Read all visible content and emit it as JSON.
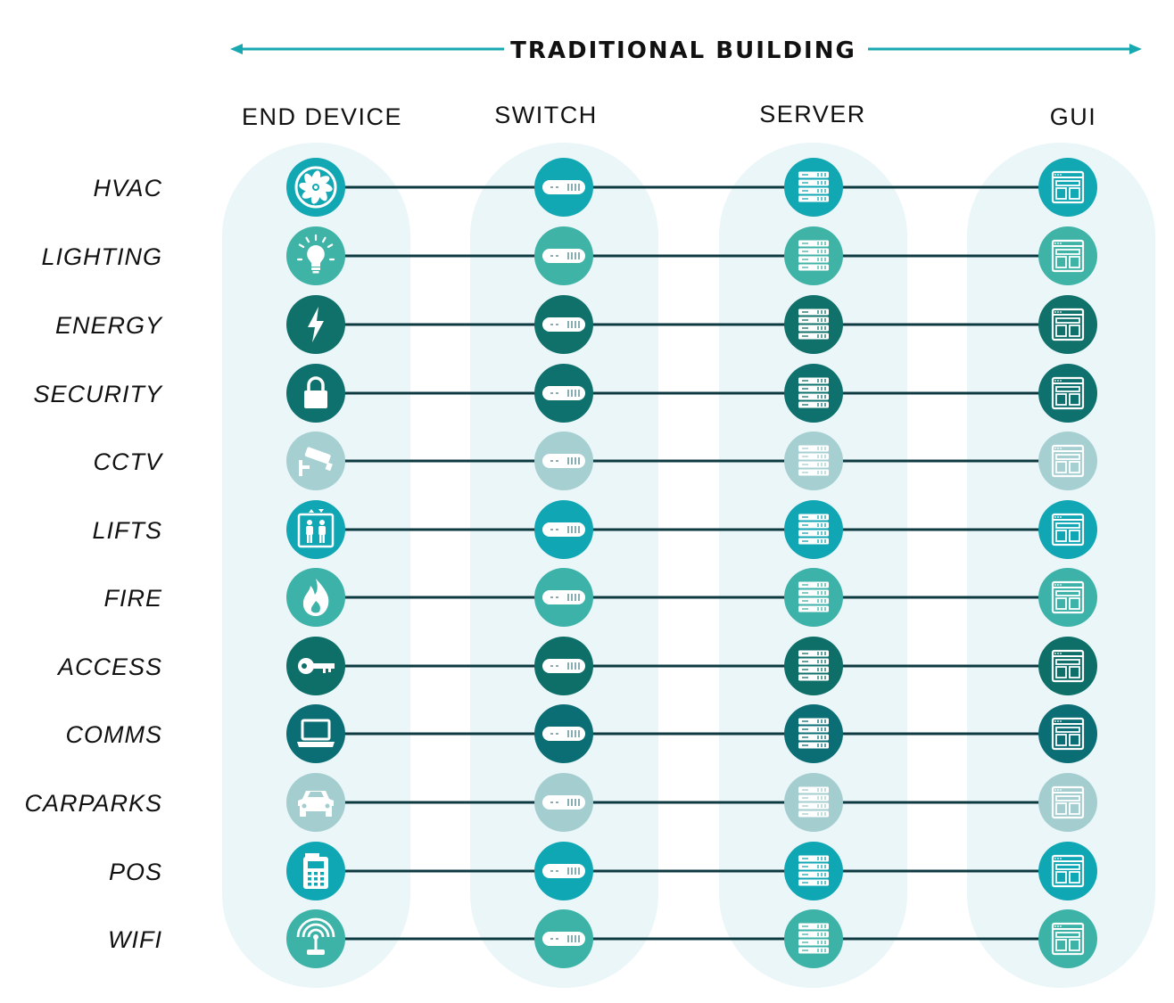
{
  "header": {
    "title": "TRADITIONAL BUILDING",
    "arrow_color": "#17a8b0"
  },
  "columns": [
    {
      "label": "END DEVICE"
    },
    {
      "label": "SWITCH"
    },
    {
      "label": "SERVER"
    },
    {
      "label": "GUI"
    }
  ],
  "column_band_color": "#eaf6f8",
  "connector_color": "#0d3a40",
  "rows": [
    {
      "label": "HVAC",
      "color": "#11a7b3",
      "device_icon": "fan-icon"
    },
    {
      "label": "LIGHTING",
      "color": "#3fb3a6",
      "device_icon": "lightbulb-icon"
    },
    {
      "label": "ENERGY",
      "color": "#10706a",
      "device_icon": "lightning-bolt-icon"
    },
    {
      "label": "SECURITY",
      "color": "#0e716e",
      "device_icon": "padlock-icon"
    },
    {
      "label": "CCTV",
      "color": "#a6cfd2",
      "device_icon": "cctv-camera-icon"
    },
    {
      "label": "LIFTS",
      "color": "#10a6b4",
      "device_icon": "elevator-icon"
    },
    {
      "label": "FIRE",
      "color": "#3cb2a8",
      "device_icon": "flame-icon"
    },
    {
      "label": "ACCESS",
      "color": "#0e6f68",
      "device_icon": "key-icon"
    },
    {
      "label": "COMMS",
      "color": "#0b6e75",
      "device_icon": "laptop-icon"
    },
    {
      "label": "CARPARKS",
      "color": "#a4cdd0",
      "device_icon": "car-icon"
    },
    {
      "label": "POS",
      "color": "#10a7b5",
      "device_icon": "pos-terminal-icon"
    },
    {
      "label": "WIFI",
      "color": "#3db3a7",
      "device_icon": "wifi-router-icon"
    }
  ],
  "column_icons": {
    "switch": "switch-icon",
    "server": "server-icon",
    "gui": "gui-window-icon"
  }
}
